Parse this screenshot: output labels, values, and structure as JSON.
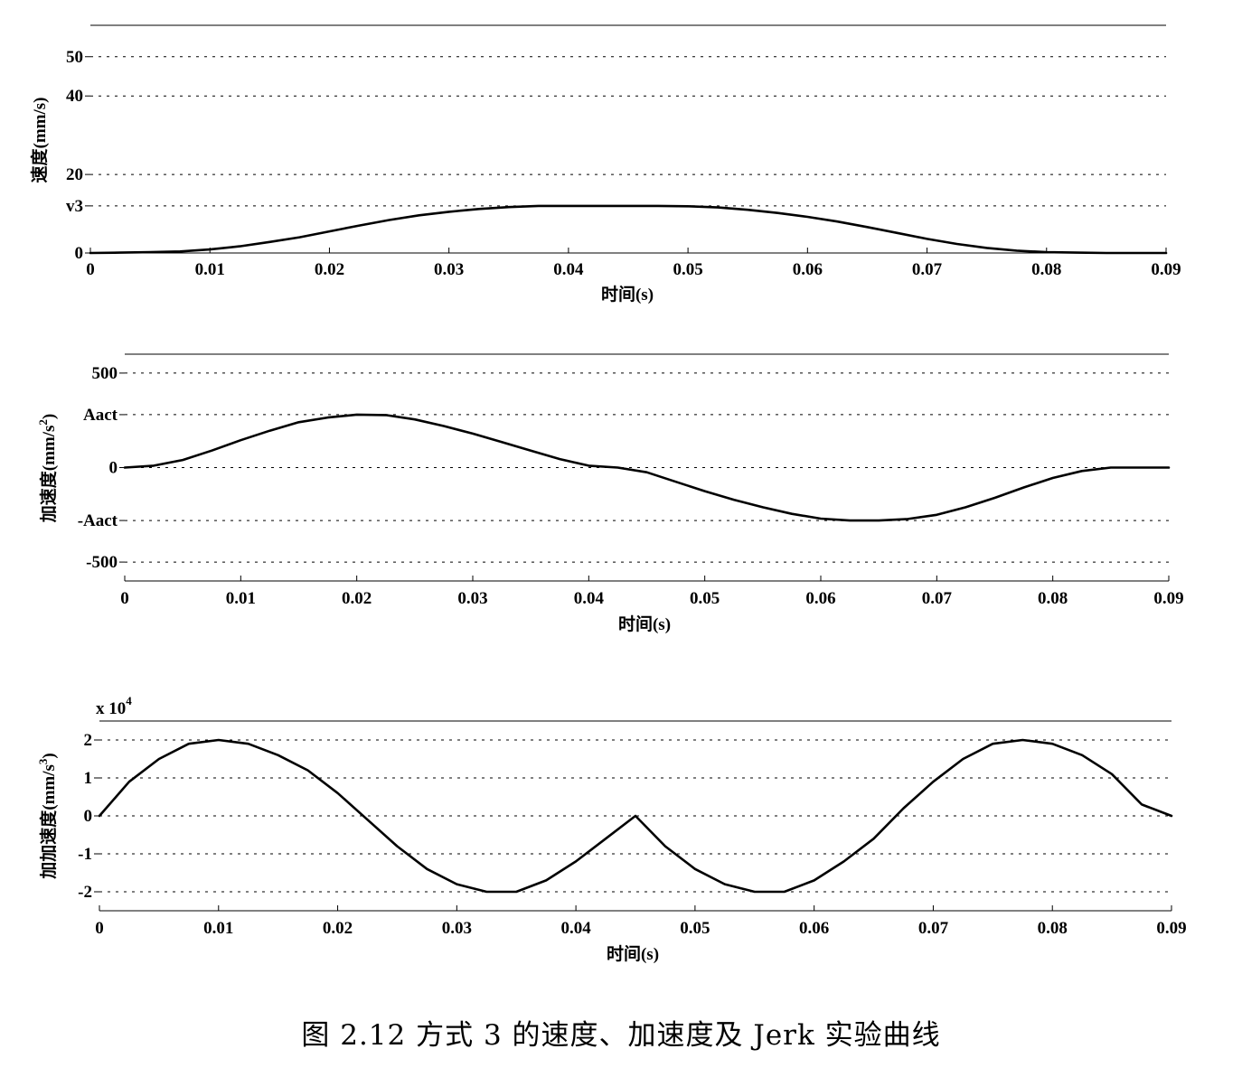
{
  "caption": "图 2.12  方式 3 的速度、加速度及 Jerk 实验曲线",
  "chart_data": [
    {
      "type": "line",
      "xlabel": "时间(s)",
      "ylabel": "速度(mm/s)",
      "xlim": [
        0,
        0.09
      ],
      "ylim": [
        0,
        58
      ],
      "grid": true,
      "x_ticks": [
        "0",
        "0.01",
        "0.02",
        "0.03",
        "0.04",
        "0.05",
        "0.06",
        "0.07",
        "0.08",
        "0.09"
      ],
      "y_ticks": [
        {
          "label": "0",
          "value": 0
        },
        {
          "label": "v3",
          "value": 12
        },
        {
          "label": "20",
          "value": 20
        },
        {
          "label": "40",
          "value": 40
        },
        {
          "label": "50",
          "value": 50
        }
      ],
      "series": [
        {
          "x": [
            0,
            0.0025,
            0.005,
            0.0075,
            0.01,
            0.0125,
            0.015,
            0.0175,
            0.02,
            0.0225,
            0.025,
            0.0275,
            0.03,
            0.0325,
            0.035,
            0.0375,
            0.04,
            0.0425,
            0.045,
            0.0475,
            0.05,
            0.0525,
            0.055,
            0.0575,
            0.06,
            0.0625,
            0.065,
            0.0675,
            0.07,
            0.0725,
            0.075,
            0.0775,
            0.08,
            0.0825,
            0.085,
            0.0875,
            0.09
          ],
          "values": [
            0,
            0.1,
            0.2,
            0.4,
            0.9,
            1.7,
            2.8,
            4.0,
            5.5,
            7.0,
            8.4,
            9.6,
            10.5,
            11.2,
            11.7,
            12.0,
            12.0,
            12.0,
            12.0,
            12.0,
            11.9,
            11.6,
            11.0,
            10.2,
            9.2,
            8.0,
            6.6,
            5.1,
            3.6,
            2.3,
            1.3,
            0.6,
            0.2,
            0.1,
            0.0,
            0.0,
            0.0
          ]
        }
      ]
    },
    {
      "type": "line",
      "xlabel": "时间(s)",
      "ylabel_main": "加速度(mm/s",
      "ylabel_sup": "2",
      "ylabel_end": ")",
      "xlim": [
        0,
        0.09
      ],
      "ylim": [
        -600,
        600
      ],
      "grid": true,
      "x_ticks": [
        "0",
        "0.01",
        "0.02",
        "0.03",
        "0.04",
        "0.05",
        "0.06",
        "0.07",
        "0.08",
        "0.09"
      ],
      "y_ticks": [
        {
          "label": "-500",
          "value": -500
        },
        {
          "label": "-Aact",
          "value": -280
        },
        {
          "label": "0",
          "value": 0
        },
        {
          "label": "Aact",
          "value": 280
        },
        {
          "label": "500",
          "value": 500
        }
      ],
      "series": [
        {
          "x": [
            0,
            0.0025,
            0.005,
            0.0075,
            0.01,
            0.0125,
            0.015,
            0.0175,
            0.02,
            0.0225,
            0.025,
            0.0275,
            0.03,
            0.0325,
            0.035,
            0.0375,
            0.04,
            0.0425,
            0.045,
            0.0475,
            0.05,
            0.0525,
            0.055,
            0.0575,
            0.06,
            0.0625,
            0.065,
            0.0675,
            0.07,
            0.0725,
            0.075,
            0.0775,
            0.08,
            0.0825,
            0.085,
            0.0875,
            0.09
          ],
          "values": [
            0,
            10,
            40,
            90,
            145,
            195,
            240,
            265,
            280,
            278,
            255,
            220,
            180,
            135,
            90,
            45,
            10,
            0,
            -25,
            -75,
            -125,
            -170,
            -210,
            -245,
            -270,
            -280,
            -280,
            -272,
            -250,
            -210,
            -160,
            -105,
            -55,
            -18,
            0,
            0,
            0
          ]
        }
      ]
    },
    {
      "type": "line",
      "xlabel": "时间(s)",
      "ylabel_main": "加加速度(mm/s",
      "ylabel_sup": "3",
      "ylabel_end": ")",
      "multiplier_base": "x 10",
      "multiplier_exp": "4",
      "xlim": [
        0,
        0.09
      ],
      "ylim": [
        -2.5,
        2.5
      ],
      "grid": true,
      "x_ticks": [
        "0",
        "0.01",
        "0.02",
        "0.03",
        "0.04",
        "0.05",
        "0.06",
        "0.07",
        "0.08",
        "0.09"
      ],
      "y_ticks": [
        {
          "label": "-2",
          "value": -2
        },
        {
          "label": "-1",
          "value": -1
        },
        {
          "label": "0",
          "value": 0
        },
        {
          "label": "1",
          "value": 1
        },
        {
          "label": "2",
          "value": 2
        }
      ],
      "series": [
        {
          "x": [
            0,
            0.0025,
            0.005,
            0.0075,
            0.01,
            0.0125,
            0.015,
            0.0175,
            0.02,
            0.0225,
            0.025,
            0.0275,
            0.03,
            0.0325,
            0.035,
            0.0375,
            0.04,
            0.0425,
            0.045,
            0.0475,
            0.05,
            0.0525,
            0.055,
            0.0575,
            0.06,
            0.0625,
            0.065,
            0.0675,
            0.07,
            0.0725,
            0.075,
            0.0775,
            0.08,
            0.0825,
            0.085,
            0.0875,
            0.09
          ],
          "values": [
            0,
            0.9,
            1.5,
            1.9,
            2.0,
            1.9,
            1.6,
            1.2,
            0.6,
            -0.1,
            -0.8,
            -1.4,
            -1.8,
            -2.0,
            -2.0,
            -1.7,
            -1.2,
            -0.6,
            0,
            -0.8,
            -1.4,
            -1.8,
            -2.0,
            -2.0,
            -1.7,
            -1.2,
            -0.6,
            0.2,
            0.9,
            1.5,
            1.9,
            2.0,
            1.9,
            1.6,
            1.1,
            0.3,
            0
          ]
        }
      ]
    }
  ]
}
